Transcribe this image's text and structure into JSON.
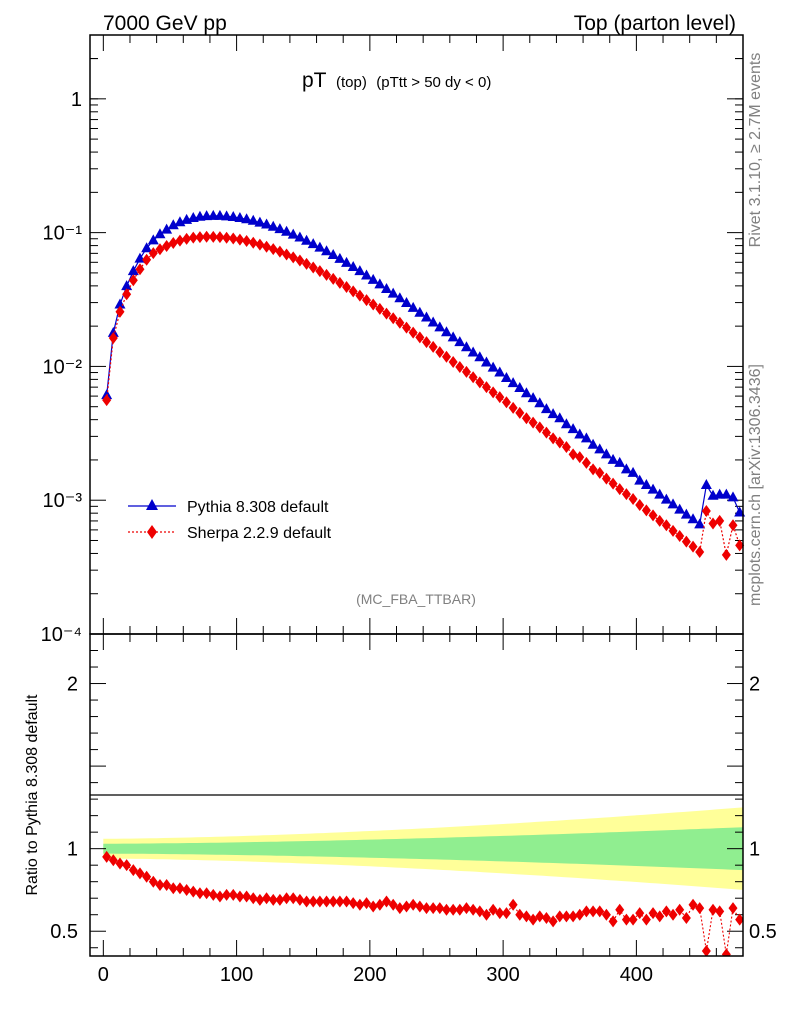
{
  "header": {
    "left": "7000 GeV pp",
    "right": "Top (parton level)",
    "side_top": "Rivet 3.1.10, ≥ 2.7M events",
    "side_bottom": "mcplots.cern.ch [arXiv:1306.3436]"
  },
  "main": {
    "title_main": "pT",
    "title_sub": "(top)",
    "title_cut": "(pTtt > 50 dy < 0)",
    "watermark": "(MC_FBA_TTBAR)"
  },
  "legend": {
    "entries": [
      "Pythia 8.308 default",
      "Sherpa 2.2.9 default"
    ]
  },
  "ratio": {
    "ylabel": "Ratio to Pythia 8.308 default"
  },
  "colors": {
    "pythia": "#0000cc",
    "sherpa": "#ee0000",
    "band_inner": "#90ee90",
    "band_outer": "#ffff99"
  },
  "chart_data": [
    {
      "type": "scatter",
      "yscale": "log",
      "xlim": [
        -10,
        480
      ],
      "ylim": [
        0.0001,
        3
      ],
      "yticks": [
        {
          "v": 1,
          "label": "1"
        },
        {
          "v": 0.1,
          "label": "10⁻¹"
        },
        {
          "v": 0.01,
          "label": "10⁻²"
        },
        {
          "v": 0.001,
          "label": "10⁻³"
        },
        {
          "v": 0.0001,
          "label": "10⁻⁴"
        }
      ],
      "legend_position": "lower-left",
      "x": [
        2.5,
        7.5,
        12.5,
        17.5,
        22.5,
        27.5,
        32.5,
        37.5,
        42.5,
        47.5,
        52.5,
        57.5,
        62.5,
        67.5,
        72.5,
        77.5,
        82.5,
        87.5,
        92.5,
        97.5,
        102.5,
        107.5,
        112.5,
        117.5,
        122.5,
        127.5,
        132.5,
        137.5,
        142.5,
        147.5,
        152.5,
        157.5,
        162.5,
        167.5,
        172.5,
        177.5,
        182.5,
        187.5,
        192.5,
        197.5,
        202.5,
        207.5,
        212.5,
        217.5,
        222.5,
        227.5,
        232.5,
        237.5,
        242.5,
        247.5,
        252.5,
        257.5,
        262.5,
        267.5,
        272.5,
        277.5,
        282.5,
        287.5,
        292.5,
        297.5,
        302.5,
        307.5,
        312.5,
        317.5,
        322.5,
        327.5,
        332.5,
        337.5,
        342.5,
        347.5,
        352.5,
        357.5,
        362.5,
        367.5,
        372.5,
        377.5,
        382.5,
        387.5,
        392.5,
        397.5,
        402.5,
        407.5,
        412.5,
        417.5,
        422.5,
        427.5,
        432.5,
        437.5,
        442.5,
        447.5,
        452.5,
        457.5,
        462.5,
        467.5,
        472.5,
        477.5
      ],
      "series": [
        {
          "name": "Pythia 8.308 default",
          "marker": "triangle",
          "values": [
            0.0061,
            0.0178,
            0.029,
            0.0398,
            0.0515,
            0.0639,
            0.0765,
            0.0876,
            0.0972,
            0.1052,
            0.1135,
            0.1196,
            0.1246,
            0.1286,
            0.1313,
            0.1327,
            0.1334,
            0.1333,
            0.1324,
            0.1308,
            0.1286,
            0.1258,
            0.1226,
            0.1189,
            0.115,
            0.1107,
            0.1062,
            0.1015,
            0.0967,
            0.0919,
            0.087,
            0.0821,
            0.0773,
            0.0726,
            0.0681,
            0.0637,
            0.0594,
            0.0554,
            0.0515,
            0.0478,
            0.0443,
            0.041,
            0.0379,
            0.035,
            0.0323,
            0.0298,
            0.0274,
            0.0252,
            0.0232,
            0.0213,
            0.0196,
            0.018,
            0.0165,
            0.0152,
            0.0139,
            0.0127,
            0.0117,
            0.0107,
            0.0098,
            0.009,
            0.0082,
            0.0075,
            0.0069,
            0.0063,
            0.0058,
            0.0053,
            0.0048,
            0.0044,
            0.0041,
            0.0037,
            0.0034,
            0.0031,
            0.0029,
            0.0026,
            0.0024,
            0.0022,
            0.002,
            0.0019,
            0.0017,
            0.0016,
            0.0014,
            0.0013,
            0.0012,
            0.0011,
            0.00101,
            0.00093,
            0.00085,
            0.00078,
            0.00072,
            0.00066,
            0.0013,
            0.00108,
            0.0011,
            0.0011,
            0.00105,
            0.00081
          ]
        },
        {
          "name": "Sherpa 2.2.9 default",
          "marker": "diamond",
          "values": [
            0.0056,
            0.0163,
            0.0256,
            0.0346,
            0.0441,
            0.0533,
            0.0627,
            0.0702,
            0.0751,
            0.0794,
            0.0836,
            0.0872,
            0.0899,
            0.0917,
            0.0926,
            0.0931,
            0.093,
            0.0926,
            0.0916,
            0.0903,
            0.0886,
            0.0865,
            0.0841,
            0.0813,
            0.0785,
            0.0753,
            0.0721,
            0.0687,
            0.0653,
            0.0619,
            0.0584,
            0.0549,
            0.0516,
            0.0483,
            0.0451,
            0.0421,
            0.0392,
            0.0364,
            0.0338,
            0.0313,
            0.029,
            0.0269,
            0.0248,
            0.0229,
            0.0212,
            0.0195,
            0.0179,
            0.0165,
            0.0152,
            0.014,
            0.0128,
            0.0118,
            0.0108,
            0.0099,
            0.0091,
            0.0083,
            0.0076,
            0.007,
            0.0064,
            0.0059,
            0.0054,
            0.0049,
            0.0045,
            0.0041,
            0.0038,
            0.0035,
            0.0032,
            0.0029,
            0.0027,
            0.0025,
            0.0022,
            0.0021,
            0.0019,
            0.0017,
            0.0016,
            0.00145,
            0.00133,
            0.00121,
            0.00111,
            0.00102,
            0.00092,
            0.00084,
            0.00077,
            0.0007,
            0.00065,
            0.00059,
            0.00054,
            0.00049,
            0.00045,
            0.00041,
            0.00083,
            0.00067,
            0.0007,
            0.00039,
            0.00065,
            0.00046
          ]
        }
      ]
    },
    {
      "type": "scatter",
      "xlim": [
        -10,
        480
      ],
      "ylim": [
        0.35,
        2.3
      ],
      "xticks": [
        0,
        100,
        200,
        300,
        400
      ],
      "yticks": [
        {
          "v": 0.5,
          "label": "0.5"
        },
        {
          "v": 1,
          "label": "1"
        },
        {
          "v": 2,
          "label": "2"
        }
      ],
      "ylabel": "Ratio to Pythia 8.308 default",
      "x": [
        2.5,
        7.5,
        12.5,
        17.5,
        22.5,
        27.5,
        32.5,
        37.5,
        42.5,
        47.5,
        52.5,
        57.5,
        62.5,
        67.5,
        72.5,
        77.5,
        82.5,
        87.5,
        92.5,
        97.5,
        102.5,
        107.5,
        112.5,
        117.5,
        122.5,
        127.5,
        132.5,
        137.5,
        142.5,
        147.5,
        152.5,
        157.5,
        162.5,
        167.5,
        172.5,
        177.5,
        182.5,
        187.5,
        192.5,
        197.5,
        202.5,
        207.5,
        212.5,
        217.5,
        222.5,
        227.5,
        232.5,
        237.5,
        242.5,
        247.5,
        252.5,
        257.5,
        262.5,
        267.5,
        272.5,
        277.5,
        282.5,
        287.5,
        292.5,
        297.5,
        302.5,
        307.5,
        312.5,
        317.5,
        322.5,
        327.5,
        332.5,
        337.5,
        342.5,
        347.5,
        352.5,
        357.5,
        362.5,
        367.5,
        372.5,
        377.5,
        382.5,
        387.5,
        392.5,
        397.5,
        402.5,
        407.5,
        412.5,
        417.5,
        422.5,
        427.5,
        432.5,
        437.5,
        442.5,
        447.5,
        452.5,
        457.5,
        462.5,
        467.5,
        472.5,
        477.5
      ],
      "series": [
        {
          "name": "Sherpa 2.2.9 default",
          "values": [
            0.95,
            0.93,
            0.91,
            0.9,
            0.87,
            0.85,
            0.83,
            0.8,
            0.78,
            0.78,
            0.76,
            0.76,
            0.75,
            0.74,
            0.73,
            0.73,
            0.72,
            0.71,
            0.72,
            0.72,
            0.71,
            0.71,
            0.7,
            0.69,
            0.7,
            0.69,
            0.69,
            0.7,
            0.7,
            0.69,
            0.68,
            0.68,
            0.68,
            0.68,
            0.68,
            0.68,
            0.68,
            0.67,
            0.66,
            0.67,
            0.65,
            0.66,
            0.68,
            0.66,
            0.64,
            0.65,
            0.66,
            0.65,
            0.64,
            0.64,
            0.64,
            0.63,
            0.63,
            0.63,
            0.64,
            0.63,
            0.62,
            0.6,
            0.63,
            0.61,
            0.61,
            0.66,
            0.6,
            0.59,
            0.57,
            0.59,
            0.58,
            0.56,
            0.59,
            0.59,
            0.59,
            0.6,
            0.62,
            0.62,
            0.62,
            0.6,
            0.56,
            0.63,
            0.57,
            0.57,
            0.61,
            0.57,
            0.61,
            0.59,
            0.62,
            0.6,
            0.63,
            0.58,
            0.66,
            0.64,
            0.38,
            0.63,
            0.62,
            0.36,
            0.64,
            0.57
          ]
        }
      ],
      "band_inner_halfwidth_at_xlim": [
        0.03,
        0.13
      ],
      "band_outer_halfwidth_at_xlim": [
        0.06,
        0.25
      ]
    }
  ]
}
